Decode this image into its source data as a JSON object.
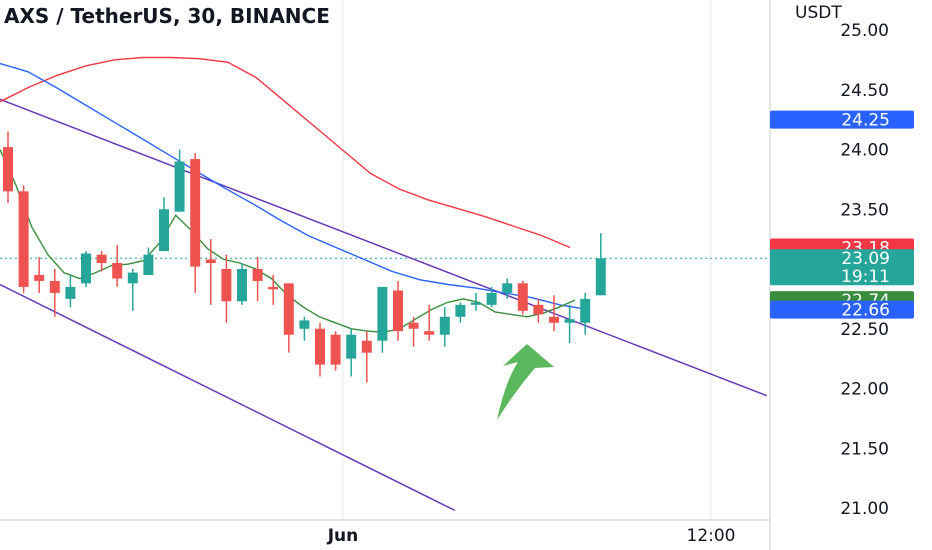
{
  "header": {
    "title": "AXS / TetherUS, 30, BINANCE",
    "currency": "USDT"
  },
  "chart_data": {
    "type": "candlestick",
    "symbol": "AXS / TetherUS",
    "interval": "30",
    "exchange": "BINANCE",
    "ylim": [
      20.9,
      25.1
    ],
    "y_ticks": [
      "25.00",
      "24.50",
      "24.00",
      "23.50",
      "22.50",
      "22.00",
      "21.50",
      "21.00"
    ],
    "x_ticks": [
      {
        "label": "Jun",
        "bold": true
      },
      {
        "label": "12:00",
        "bold": false
      }
    ],
    "price_badges": [
      {
        "value": "24.25",
        "color": "#2962ff",
        "y": 24.25
      },
      {
        "value": "23.18",
        "color": "#f23645",
        "y": 23.18
      },
      {
        "value": "23.09",
        "color": "#26a69a",
        "y": 23.09,
        "sub": "19:11"
      },
      {
        "value": "22.74",
        "color": "#388e3c",
        "y": 22.74
      },
      {
        "value": "22.66",
        "color": "#2962ff",
        "y": 22.66
      }
    ],
    "current_price": 23.09,
    "candles": [
      {
        "o": 24.02,
        "h": 24.15,
        "l": 23.55,
        "c": 23.65
      },
      {
        "o": 23.65,
        "h": 23.7,
        "l": 22.8,
        "c": 22.85
      },
      {
        "o": 22.95,
        "h": 23.1,
        "l": 22.8,
        "c": 22.9
      },
      {
        "o": 22.9,
        "h": 23.0,
        "l": 22.6,
        "c": 22.8
      },
      {
        "o": 22.75,
        "h": 22.95,
        "l": 22.68,
        "c": 22.85
      },
      {
        "o": 22.88,
        "h": 23.15,
        "l": 22.85,
        "c": 23.13
      },
      {
        "o": 23.12,
        "h": 23.15,
        "l": 22.98,
        "c": 23.05
      },
      {
        "o": 23.05,
        "h": 23.2,
        "l": 22.85,
        "c": 22.92
      },
      {
        "o": 22.88,
        "h": 23.0,
        "l": 22.65,
        "c": 22.97
      },
      {
        "o": 22.95,
        "h": 23.18,
        "l": 22.95,
        "c": 23.12
      },
      {
        "o": 23.15,
        "h": 23.6,
        "l": 23.15,
        "c": 23.5
      },
      {
        "o": 23.48,
        "h": 24.0,
        "l": 23.48,
        "c": 23.9
      },
      {
        "o": 23.92,
        "h": 23.97,
        "l": 22.8,
        "c": 23.02
      },
      {
        "o": 23.08,
        "h": 23.25,
        "l": 22.7,
        "c": 23.05
      },
      {
        "o": 23.0,
        "h": 23.12,
        "l": 22.55,
        "c": 22.73
      },
      {
        "o": 22.73,
        "h": 23.05,
        "l": 22.7,
        "c": 23.0
      },
      {
        "o": 23.0,
        "h": 23.1,
        "l": 22.73,
        "c": 22.9
      },
      {
        "o": 22.85,
        "h": 22.95,
        "l": 22.7,
        "c": 22.83
      },
      {
        "o": 22.88,
        "h": 22.88,
        "l": 22.3,
        "c": 22.45
      },
      {
        "o": 22.5,
        "h": 22.6,
        "l": 22.4,
        "c": 22.57
      },
      {
        "o": 22.5,
        "h": 22.55,
        "l": 22.1,
        "c": 22.2
      },
      {
        "o": 22.45,
        "h": 22.48,
        "l": 22.15,
        "c": 22.2
      },
      {
        "o": 22.25,
        "h": 22.5,
        "l": 22.1,
        "c": 22.45
      },
      {
        "o": 22.4,
        "h": 22.48,
        "l": 22.05,
        "c": 22.3
      },
      {
        "o": 22.4,
        "h": 22.85,
        "l": 22.3,
        "c": 22.85
      },
      {
        "o": 22.82,
        "h": 22.9,
        "l": 22.4,
        "c": 22.48
      },
      {
        "o": 22.55,
        "h": 22.6,
        "l": 22.35,
        "c": 22.5
      },
      {
        "o": 22.48,
        "h": 22.7,
        "l": 22.4,
        "c": 22.45
      },
      {
        "o": 22.45,
        "h": 22.68,
        "l": 22.35,
        "c": 22.6
      },
      {
        "o": 22.6,
        "h": 22.72,
        "l": 22.55,
        "c": 22.7
      },
      {
        "o": 22.7,
        "h": 22.8,
        "l": 22.65,
        "c": 22.72
      },
      {
        "o": 22.7,
        "h": 22.85,
        "l": 22.68,
        "c": 22.8
      },
      {
        "o": 22.8,
        "h": 22.92,
        "l": 22.75,
        "c": 22.88
      },
      {
        "o": 22.88,
        "h": 22.9,
        "l": 22.62,
        "c": 22.65
      },
      {
        "o": 22.7,
        "h": 22.75,
        "l": 22.55,
        "c": 22.62
      },
      {
        "o": 22.6,
        "h": 22.78,
        "l": 22.48,
        "c": 22.55
      },
      {
        "o": 22.55,
        "h": 22.7,
        "l": 22.38,
        "c": 22.58
      },
      {
        "o": 22.55,
        "h": 22.8,
        "l": 22.45,
        "c": 22.75
      },
      {
        "o": 22.78,
        "h": 23.3,
        "l": 22.78,
        "c": 23.09
      }
    ],
    "series": [
      {
        "color": "#f23645",
        "values": [
          24.4,
          24.52,
          24.62,
          24.7,
          24.75,
          24.77,
          24.77,
          24.76,
          24.73,
          24.6,
          24.4,
          24.2,
          24.0,
          23.8,
          23.67,
          23.58,
          23.51,
          23.44,
          23.36,
          23.28,
          23.18
        ]
      },
      {
        "color": "#2962ff",
        "values": [
          24.72,
          24.65,
          24.52,
          24.38,
          24.24,
          24.1,
          23.96,
          23.82,
          23.68,
          23.55,
          23.41,
          23.28,
          23.18,
          23.08,
          22.98,
          22.91,
          22.87,
          22.84,
          22.8,
          22.76,
          22.7,
          22.66
        ]
      },
      {
        "color": "#388e3c",
        "values": [
          24.0,
          23.7,
          23.35,
          23.12,
          22.97,
          22.92,
          22.97,
          23.03,
          23.04,
          23.07,
          23.22,
          23.45,
          23.32,
          23.17,
          23.08,
          23.05,
          23.0,
          22.92,
          22.78,
          22.68,
          22.6,
          22.55,
          22.5,
          22.48,
          22.47,
          22.5,
          22.58,
          22.66,
          22.72,
          22.75,
          22.72,
          22.64,
          22.62,
          22.6,
          22.63,
          22.68,
          22.74
        ]
      },
      {
        "color": "#673ab7",
        "type": "trendline",
        "from": [
          0,
          24.42
        ],
        "to": [
          48,
          21.94
        ]
      },
      {
        "color": "#673ab7",
        "type": "trendline",
        "from": [
          0,
          22.87
        ],
        "to": [
          28,
          20.98
        ]
      }
    ],
    "annotation": {
      "type": "arrow",
      "color": "#5cb85c",
      "direction": "up-right"
    }
  }
}
